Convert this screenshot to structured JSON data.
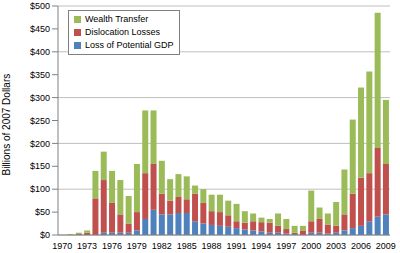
{
  "chart_data": {
    "type": "bar",
    "stacked": true,
    "grid": true,
    "legend": "upper left",
    "y_label": "Billions of 2007 Dollars",
    "categories": [
      "1970",
      null,
      null,
      "1973",
      null,
      null,
      "1976",
      null,
      null,
      "1979",
      null,
      null,
      "1982",
      null,
      null,
      "1985",
      null,
      null,
      "1988",
      null,
      null,
      "1991",
      null,
      null,
      "1994",
      null,
      null,
      "1997",
      null,
      null,
      "2000",
      null,
      null,
      "2003",
      null,
      null,
      "2006",
      null,
      null,
      "2009"
    ],
    "series": [
      {
        "name": "Loss of Potential GDP",
        "color": "#4f81bd",
        "values": [
          0,
          0,
          0,
          0,
          0,
          5,
          5,
          5,
          5,
          10,
          35,
          55,
          45,
          45,
          48,
          48,
          30,
          25,
          22,
          20,
          18,
          15,
          12,
          10,
          8,
          5,
          5,
          3,
          2,
          0,
          5,
          5,
          3,
          5,
          10,
          15,
          20,
          30,
          40,
          45
        ]
      },
      {
        "name": "Dislocation Losses",
        "color": "#c0504d",
        "values": [
          0,
          0,
          2,
          5,
          80,
          115,
          65,
          40,
          20,
          40,
          100,
          100,
          45,
          30,
          35,
          30,
          60,
          45,
          30,
          30,
          25,
          15,
          15,
          20,
          20,
          22,
          15,
          10,
          3,
          10,
          25,
          30,
          20,
          15,
          35,
          75,
          105,
          105,
          150,
          110
        ]
      },
      {
        "name": "Wealth Transfer",
        "color": "#9bbb59",
        "values": [
          0,
          2,
          3,
          5,
          60,
          62,
          70,
          75,
          60,
          105,
          137,
          117,
          72,
          47,
          50,
          50,
          18,
          30,
          36,
          38,
          32,
          38,
          25,
          17,
          10,
          8,
          27,
          22,
          15,
          10,
          67,
          25,
          24,
          52,
          98,
          162,
          197,
          222,
          295,
          140
        ]
      }
    ],
    "ylim": [
      0,
      500
    ],
    "yticks": [
      {
        "value": 0,
        "label": "$0"
      },
      {
        "value": 50,
        "label": "$50"
      },
      {
        "value": 100,
        "label": "$100"
      },
      {
        "value": 150,
        "label": "$150"
      },
      {
        "value": 200,
        "label": "$200"
      },
      {
        "value": 250,
        "label": "$250"
      },
      {
        "value": 300,
        "label": "$300"
      },
      {
        "value": 350,
        "label": "$350"
      },
      {
        "value": 400,
        "label": "$400"
      },
      {
        "value": 450,
        "label": "$450"
      },
      {
        "value": 500,
        "label": "$500"
      }
    ]
  }
}
